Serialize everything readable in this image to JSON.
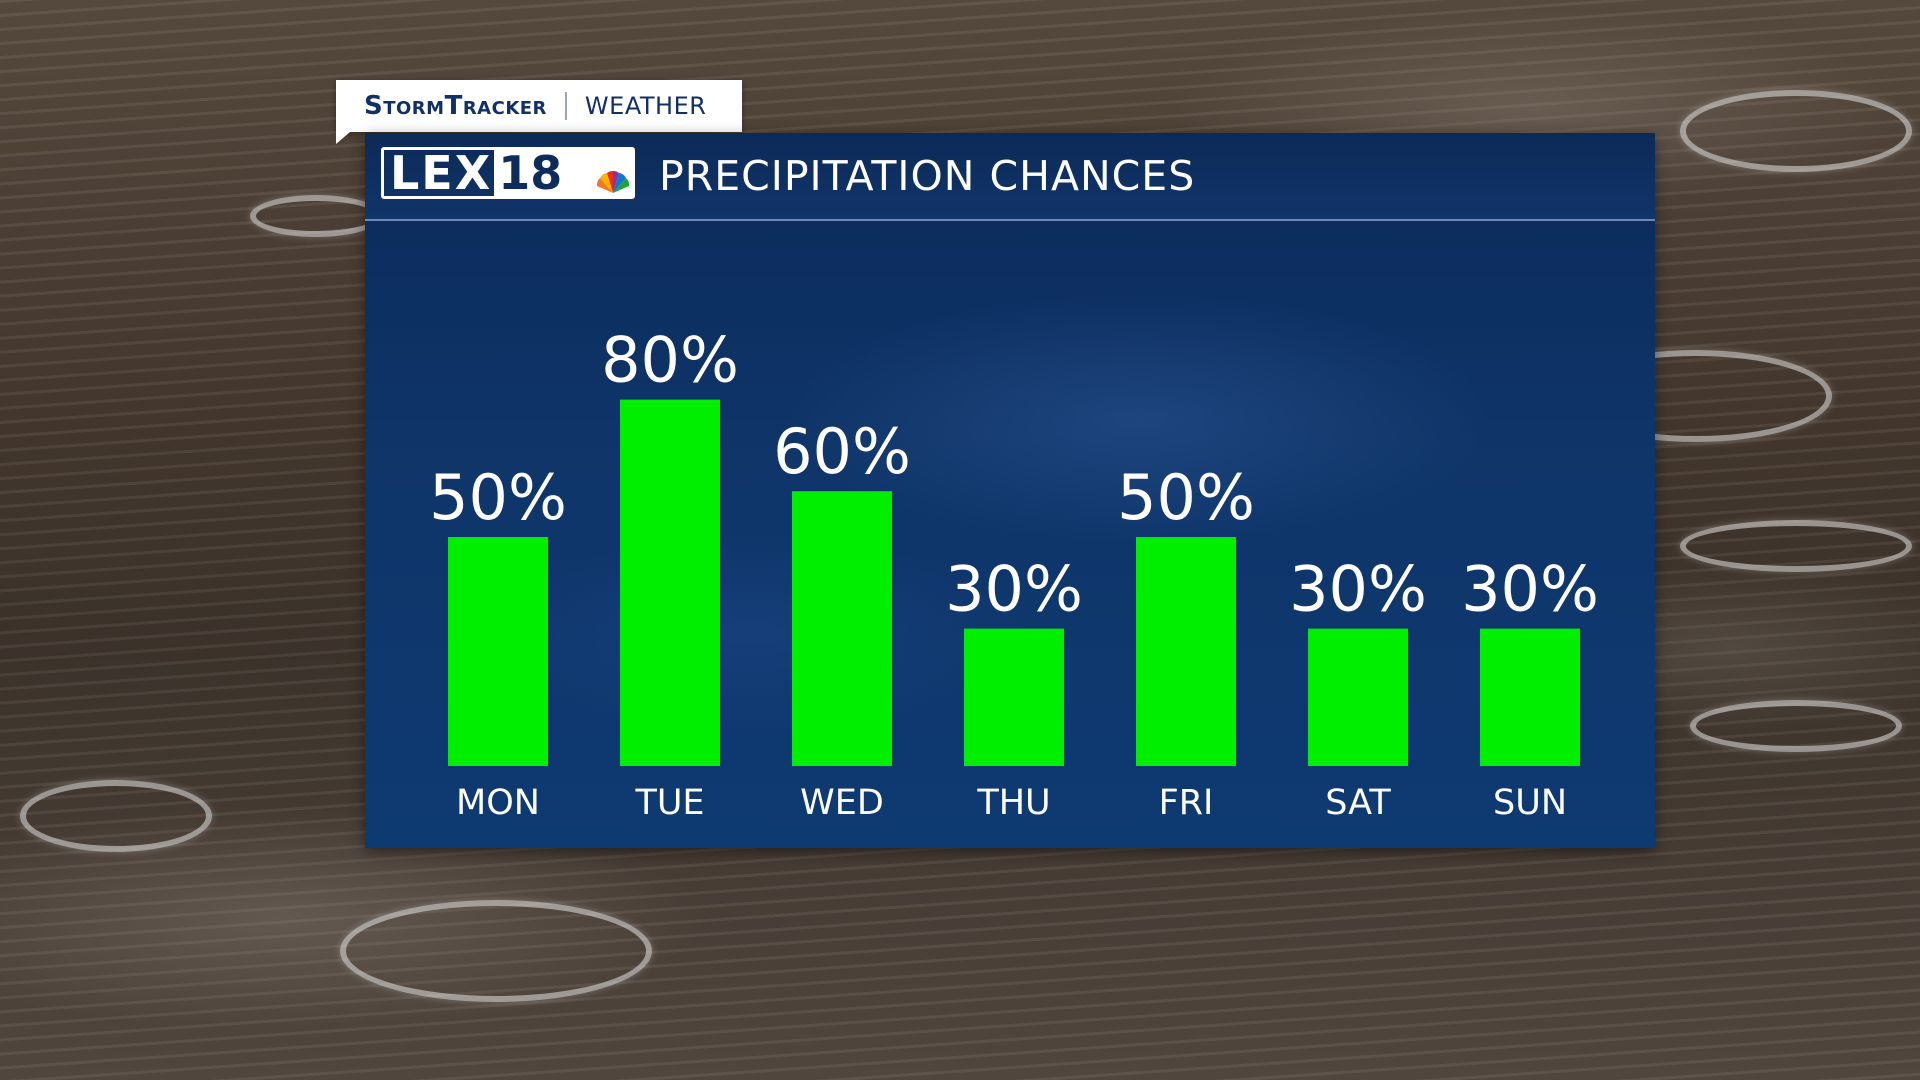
{
  "brand": {
    "name": "StormTracker",
    "section": "WEATHER"
  },
  "logo": {
    "letters": "LEX",
    "number": "18",
    "icon": "peacock-icon"
  },
  "panel": {
    "title": "PRECIPITATION CHANCES"
  },
  "colors": {
    "bar": "#00ee00",
    "panel": "#0f3569",
    "text": "#ffffff",
    "brand": "#123068"
  },
  "chart_data": {
    "type": "bar",
    "title": "PRECIPITATION CHANCES",
    "categories": [
      "MON",
      "TUE",
      "WED",
      "THU",
      "FRI",
      "SAT",
      "SUN"
    ],
    "values": [
      50,
      80,
      60,
      30,
      50,
      30,
      30
    ],
    "value_labels": [
      "50%",
      "80%",
      "60%",
      "30%",
      "50%",
      "30%",
      "30%"
    ],
    "unit": "%",
    "ylim": [
      0,
      100
    ],
    "grid": false,
    "legend": "none"
  }
}
